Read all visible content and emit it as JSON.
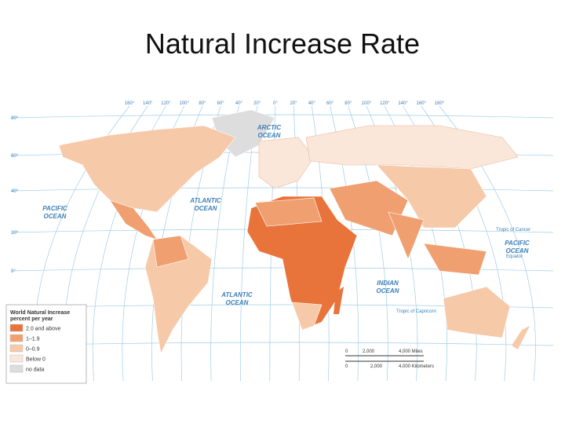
{
  "title": "Natural Increase Rate",
  "map": {
    "oceans": [
      {
        "lines": [
          "ARCTIC",
          "OCEAN"
        ]
      },
      {
        "lines": [
          "PACIFIC",
          "OCEAN"
        ]
      },
      {
        "lines": [
          "ATLANTIC",
          "OCEAN"
        ]
      },
      {
        "lines": [
          "ATLANTIC",
          "OCEAN"
        ]
      },
      {
        "lines": [
          "INDIAN",
          "OCEAN"
        ]
      },
      {
        "lines": [
          "PACIFIC",
          "OCEAN"
        ]
      }
    ],
    "lines": [
      "Tropic of Cancer",
      "Equator",
      "Tropic of Capricorn"
    ],
    "longitudes": [
      "160°",
      "140°",
      "120°",
      "100°",
      "80°",
      "60°",
      "40°",
      "20°",
      "0°",
      "20°",
      "40°",
      "60°",
      "80°",
      "100°",
      "120°",
      "140°",
      "160°",
      "180°"
    ],
    "latitudes": [
      "80°",
      "60°",
      "40°",
      "20°",
      "0°",
      "20°",
      "40°"
    ],
    "legend": {
      "title": [
        "World Natural Increase",
        "percent per year"
      ],
      "items": [
        {
          "label": "2.0 and above",
          "color": "#e8743b"
        },
        {
          "label": "1–1.9",
          "color": "#f0a070"
        },
        {
          "label": "0–0.9",
          "color": "#f6c9a8"
        },
        {
          "label": "Below 0",
          "color": "#fbe6da"
        },
        {
          "label": "no data",
          "color": "#dddddd"
        }
      ]
    },
    "scale": {
      "miles": [
        "0",
        "2,000",
        "4,000 Miles"
      ],
      "kilometers": [
        "0",
        "2,000",
        "4,000 Kilometers"
      ]
    }
  }
}
